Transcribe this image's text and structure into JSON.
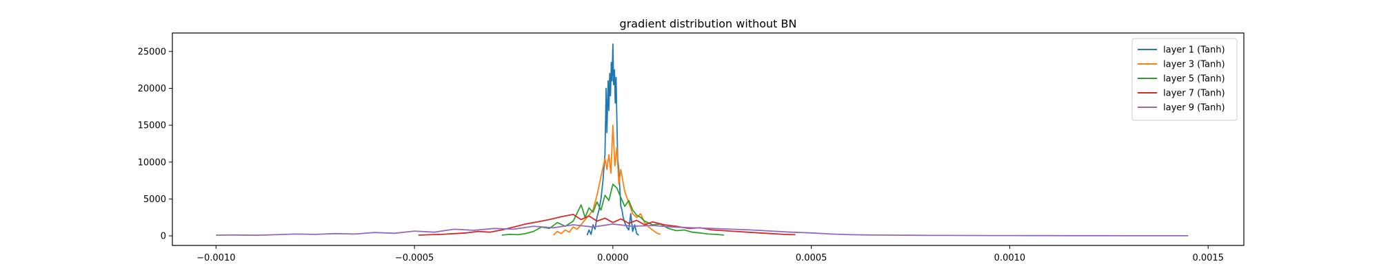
{
  "chart_data": {
    "type": "line",
    "title": "gradient distribution without BN",
    "xlabel": "",
    "ylabel": "",
    "xlim": [
      -0.00111,
      0.00159
    ],
    "ylim": [
      -1300,
      27500
    ],
    "xticks": [
      -0.001,
      -0.0005,
      0.0,
      0.0005,
      0.001,
      0.0015
    ],
    "xtick_labels": [
      "−0.0010",
      "−0.0005",
      "0.0000",
      "0.0005",
      "0.0010",
      "0.0015"
    ],
    "yticks": [
      0,
      5000,
      10000,
      15000,
      20000,
      25000
    ],
    "ytick_labels": [
      "0",
      "5000",
      "10000",
      "15000",
      "20000",
      "25000"
    ],
    "grid": false,
    "legend_position": "top-right",
    "series": [
      {
        "name": "layer 1 (Tanh)",
        "color": "#1f77b4",
        "x": [
          -6.5e-05,
          -6e-05,
          -5.5e-05,
          -5e-05,
          -4.5e-05,
          -4e-05,
          -3.5e-05,
          -3e-05,
          -2.5e-05,
          -2e-05,
          -1.7e-05,
          -1.5e-05,
          -1.2e-05,
          -1e-05,
          -8e-06,
          -6e-06,
          -4e-06,
          -2e-06,
          0.0,
          2e-06,
          4e-06,
          6e-06,
          8e-06,
          1e-05,
          1.2e-05,
          1.5e-05,
          1.8e-05,
          2e-05,
          2.3e-05,
          2.6e-05,
          3e-05,
          3.5e-05,
          4e-05,
          4.5e-05,
          5e-05,
          5.5e-05,
          6e-05,
          6.5e-05
        ],
        "y": [
          100,
          800,
          200,
          1500,
          900,
          2500,
          3500,
          5000,
          7500,
          11000,
          20000,
          14000,
          21000,
          17000,
          22000,
          19000,
          23500,
          21000,
          26000,
          20500,
          22500,
          18000,
          21500,
          16000,
          10500,
          9000,
          6000,
          4000,
          3500,
          2500,
          1800,
          1200,
          800,
          3000,
          600,
          1500,
          300,
          100
        ]
      },
      {
        "name": "layer 3 (Tanh)",
        "color": "#ff7f0e",
        "x": [
          -0.00015,
          -0.00014,
          -0.00013,
          -0.00012,
          -0.00011,
          -0.0001,
          -9e-05,
          -8e-05,
          -7e-05,
          -6e-05,
          -5e-05,
          -4e-05,
          -3e-05,
          -2e-05,
          -1.5e-05,
          -1e-05,
          -5e-06,
          0.0,
          5e-06,
          1e-05,
          1.5e-05,
          2e-05,
          3e-05,
          4e-05,
          5e-05,
          6e-05,
          7e-05,
          8e-05,
          9e-05,
          0.0001,
          0.00011,
          0.00012
        ],
        "y": [
          100,
          600,
          300,
          800,
          500,
          1200,
          900,
          1500,
          2200,
          2800,
          3500,
          5500,
          8000,
          10500,
          9000,
          11000,
          8500,
          15000,
          9500,
          12000,
          7000,
          9000,
          6000,
          4500,
          3000,
          2500,
          3000,
          1800,
          1200,
          800,
          400,
          200
        ]
      },
      {
        "name": "layer 5 (Tanh)",
        "color": "#2ca02c",
        "x": [
          -0.00028,
          -0.00026,
          -0.00024,
          -0.00022,
          -0.0002,
          -0.00018,
          -0.00016,
          -0.00014,
          -0.00012,
          -0.0001,
          -8e-05,
          -7e-05,
          -6e-05,
          -5e-05,
          -4e-05,
          -3e-05,
          -2e-05,
          -1e-05,
          0.0,
          1e-05,
          2e-05,
          3e-05,
          4e-05,
          5e-05,
          6e-05,
          7e-05,
          8e-05,
          0.0001,
          0.00012,
          0.00014,
          0.00016,
          0.00018,
          0.0002,
          0.00022,
          0.00024,
          0.00026,
          0.00028
        ],
        "y": [
          100,
          200,
          150,
          300,
          600,
          1200,
          1000,
          1800,
          1300,
          2000,
          4200,
          2500,
          3800,
          3200,
          4600,
          3500,
          5500,
          4800,
          7000,
          6500,
          5200,
          4000,
          4800,
          3500,
          2800,
          2500,
          2000,
          1500,
          1600,
          1000,
          700,
          800,
          500,
          400,
          250,
          200,
          100
        ]
      },
      {
        "name": "layer 7 (Tanh)",
        "color": "#d62728",
        "x": [
          -0.00049,
          -0.00046,
          -0.00043,
          -0.0004,
          -0.00037,
          -0.00034,
          -0.00031,
          -0.00028,
          -0.00025,
          -0.00022,
          -0.00019,
          -0.00016,
          -0.00013,
          -0.0001,
          -8e-05,
          -6e-05,
          -4e-05,
          -2e-05,
          0.0,
          2e-05,
          4e-05,
          6e-05,
          8e-05,
          0.0001,
          0.00013,
          0.00016,
          0.00019,
          0.00022,
          0.00025,
          0.00028,
          0.00031,
          0.00034,
          0.00037,
          0.0004,
          0.00043,
          0.00046
        ],
        "y": [
          100,
          150,
          200,
          300,
          400,
          600,
          500,
          800,
          1200,
          1600,
          1900,
          2200,
          2600,
          2900,
          2200,
          2700,
          2000,
          2400,
          1800,
          2300,
          1700,
          2100,
          1500,
          1900,
          1500,
          1300,
          1000,
          1100,
          800,
          700,
          600,
          500,
          400,
          300,
          200,
          150
        ]
      },
      {
        "name": "layer 9 (Tanh)",
        "color": "#9467bd",
        "x": [
          -0.001,
          -0.00095,
          -0.0009,
          -0.00085,
          -0.0008,
          -0.00075,
          -0.0007,
          -0.00065,
          -0.0006,
          -0.00055,
          -0.0005,
          -0.00045,
          -0.0004,
          -0.00035,
          -0.0003,
          -0.00025,
          -0.0002,
          -0.00015,
          -0.0001,
          -5e-05,
          0.0,
          5e-05,
          0.0001,
          0.00015,
          0.0002,
          0.00025,
          0.0003,
          0.00035,
          0.0004,
          0.00045,
          0.0005,
          0.00055,
          0.0006,
          0.00065,
          0.0007,
          0.00075,
          0.0008,
          0.00085,
          0.0009,
          0.00095,
          0.001,
          0.00105,
          0.0011,
          0.00115,
          0.0012,
          0.00125,
          0.0013,
          0.00135,
          0.0014,
          0.00145
        ],
        "y": [
          100,
          120,
          80,
          150,
          250,
          200,
          300,
          250,
          450,
          350,
          650,
          500,
          900,
          750,
          1000,
          900,
          1300,
          1100,
          1500,
          1200,
          1600,
          1300,
          1400,
          1200,
          1100,
          1000,
          900,
          800,
          650,
          500,
          400,
          250,
          150,
          120,
          100,
          80,
          60,
          60,
          50,
          40,
          40,
          30,
          30,
          20,
          20,
          20,
          15,
          15,
          10,
          10
        ]
      }
    ]
  }
}
